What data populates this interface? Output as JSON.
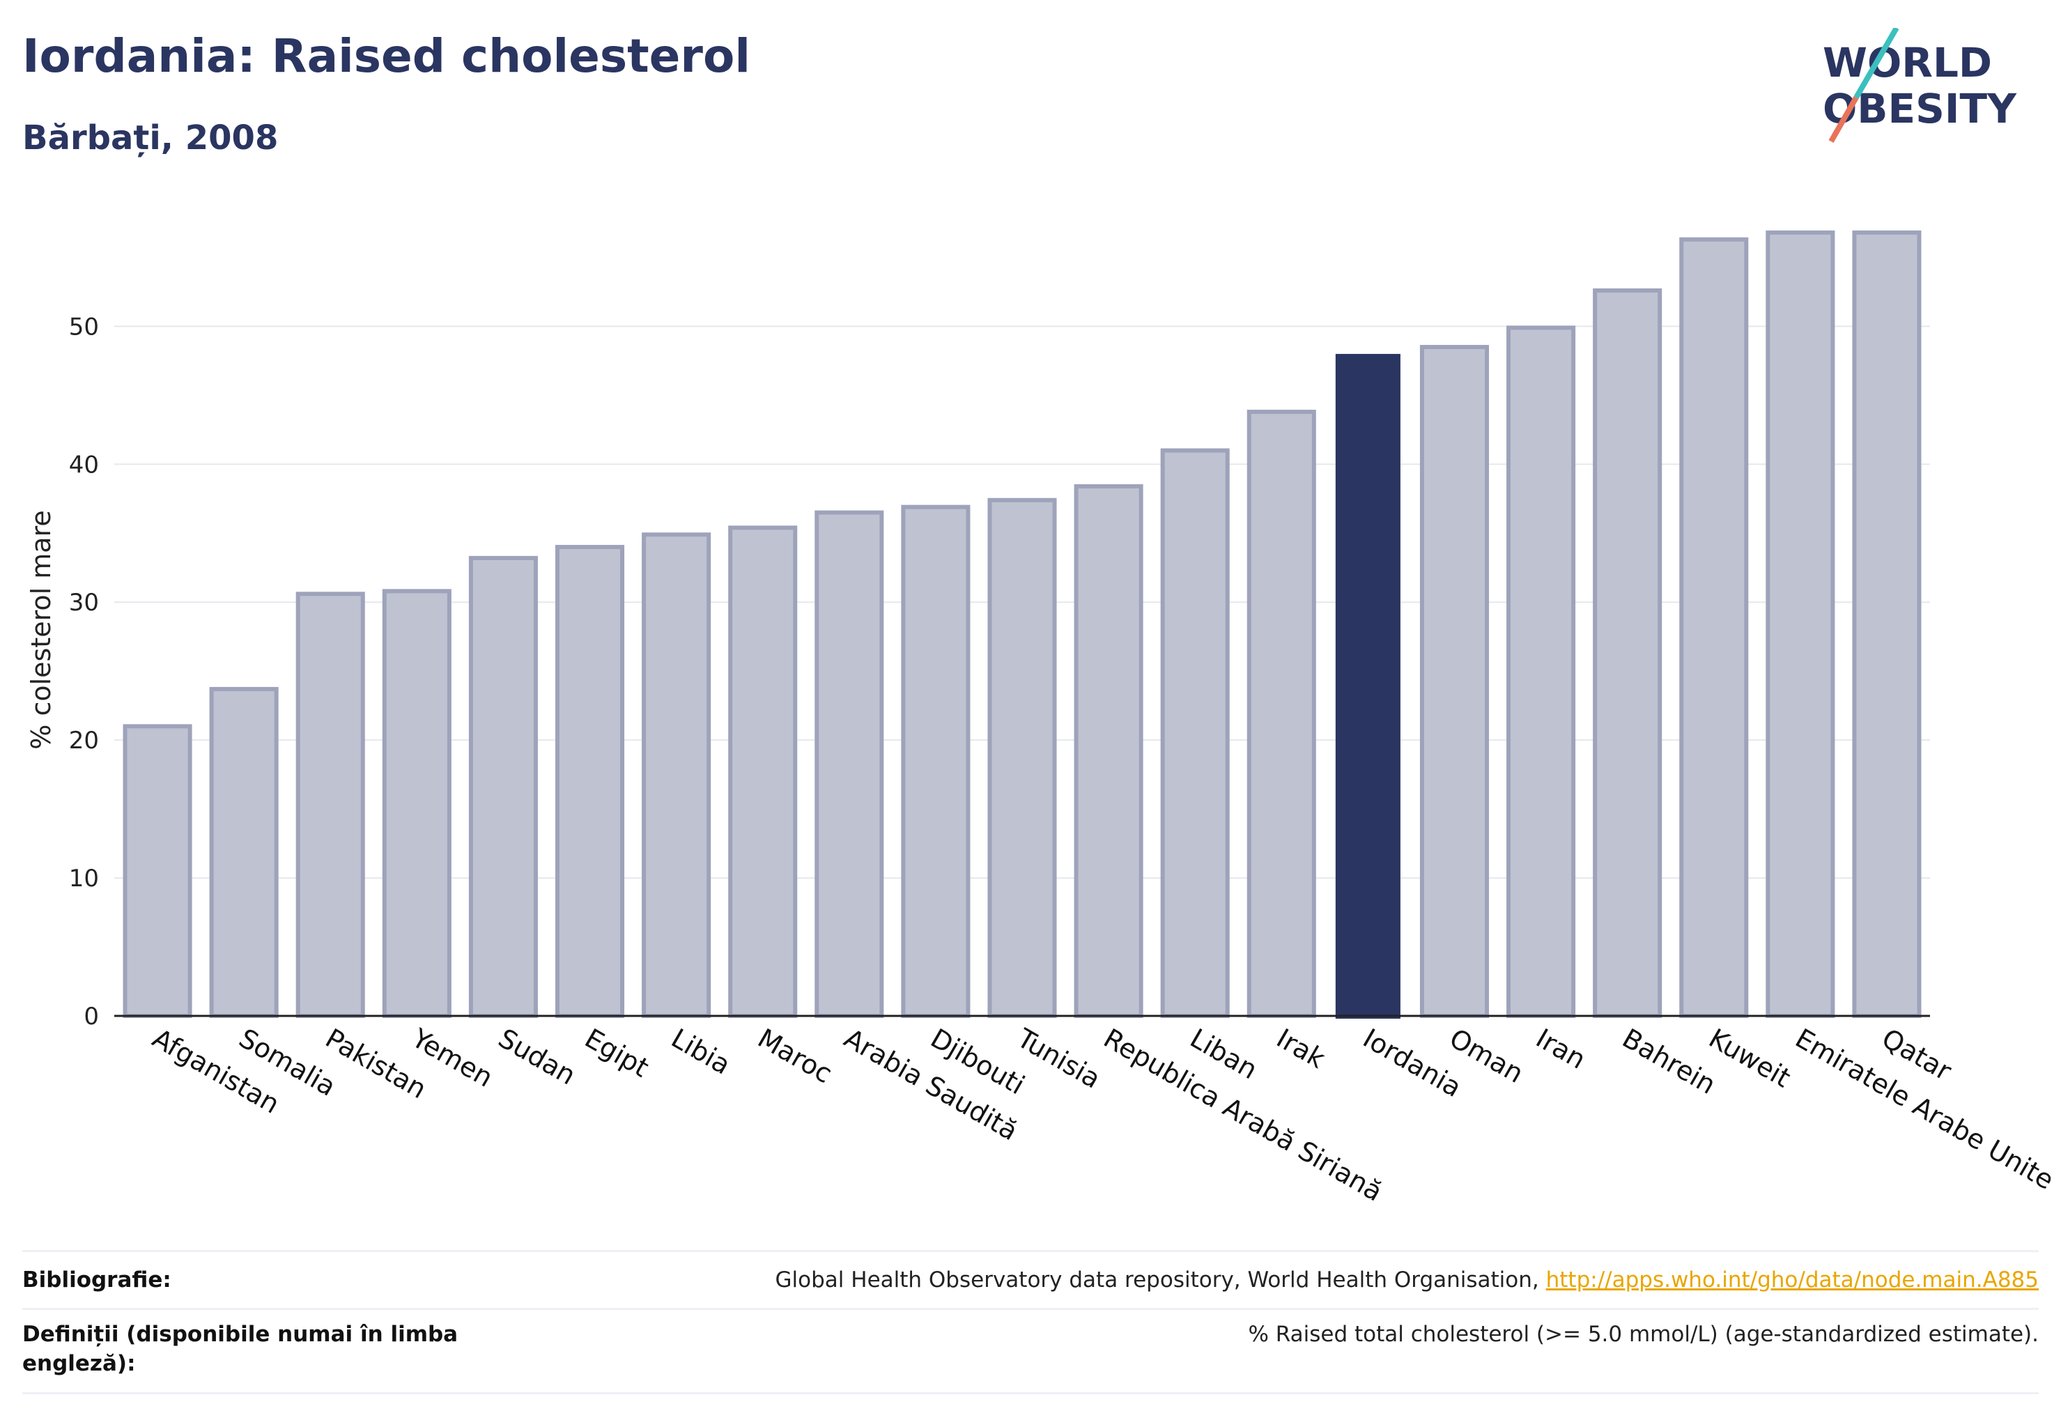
{
  "header": {
    "title": "Iordania: Raised cholesterol",
    "subtitle": "Bărbați, 2008"
  },
  "logo": {
    "line1": "WORLD",
    "line2": "OBESITY"
  },
  "colors": {
    "highlight": "#2a3561",
    "bar": "#bfc3d1",
    "bar_stroke": "#9ea3bb",
    "accent_teal": "#3bbfbf",
    "accent_coral": "#e8735a"
  },
  "chart_data": {
    "type": "bar",
    "ylabel": "% colesterol mare",
    "ylim": [
      0,
      58
    ],
    "yticks": [
      0,
      10,
      20,
      30,
      40,
      50
    ],
    "grid": true,
    "highlight": "Iordania",
    "categories": [
      "Afganistan",
      "Somalia",
      "Pakistan",
      "Yemen",
      "Sudan",
      "Egipt",
      "Libia",
      "Maroc",
      "Arabia Saudită",
      "Djibouti",
      "Tunisia",
      "Republica Arabă Siriană",
      "Liban",
      "Irak",
      "Iordania",
      "Oman",
      "Iran",
      "Bahrein",
      "Kuweit",
      "Emiratele Arabe Unite",
      "Qatar"
    ],
    "values": [
      21.0,
      23.7,
      30.6,
      30.8,
      33.2,
      34.0,
      34.9,
      35.4,
      36.5,
      36.9,
      37.4,
      38.4,
      41.0,
      43.8,
      48.0,
      48.5,
      49.9,
      52.6,
      56.3,
      56.8,
      56.8
    ]
  },
  "footer": {
    "bibliography_label": "Bibliografie:",
    "bibliography_text": "Global Health Observatory data repository, World Health Organisation, ",
    "bibliography_link": "http://apps.who.int/gho/data/node.main.A885",
    "definitions_label": "Definiții (disponibile numai în limba engleză):",
    "definitions_text": "% Raised total cholesterol (>= 5.0 mmol/L) (age-standardized estimate)."
  }
}
